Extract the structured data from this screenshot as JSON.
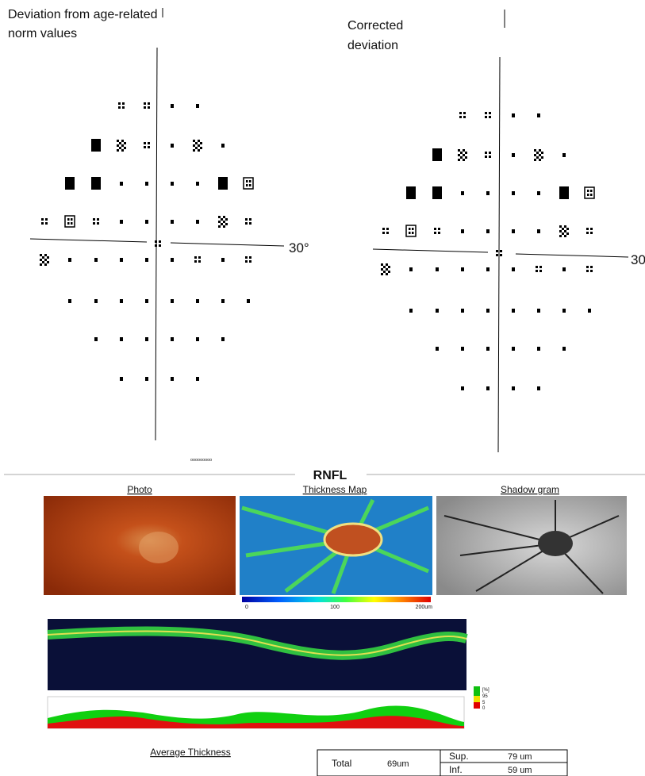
{
  "left_field": {
    "title": "Deviation from age-related norm values",
    "axis_label": "30°"
  },
  "right_field": {
    "title": "Corrected deviation",
    "axis_label": "30"
  },
  "rnfl": {
    "title": "RNFL",
    "photo": "Photo",
    "thickness_map": "Thickness Map",
    "shadowgram": "Shadow gram",
    "scale_labels": [
      "0",
      "100",
      "200um"
    ],
    "legend_labels": [
      "[%]",
      "95",
      "5",
      "0"
    ]
  },
  "average": {
    "title": "Average Thickness",
    "total_label": "Total",
    "total_value": "69um",
    "sup_label": "Sup.",
    "sup_value": "79 um",
    "inf_label": "Inf.",
    "inf_value": "59 um"
  }
}
